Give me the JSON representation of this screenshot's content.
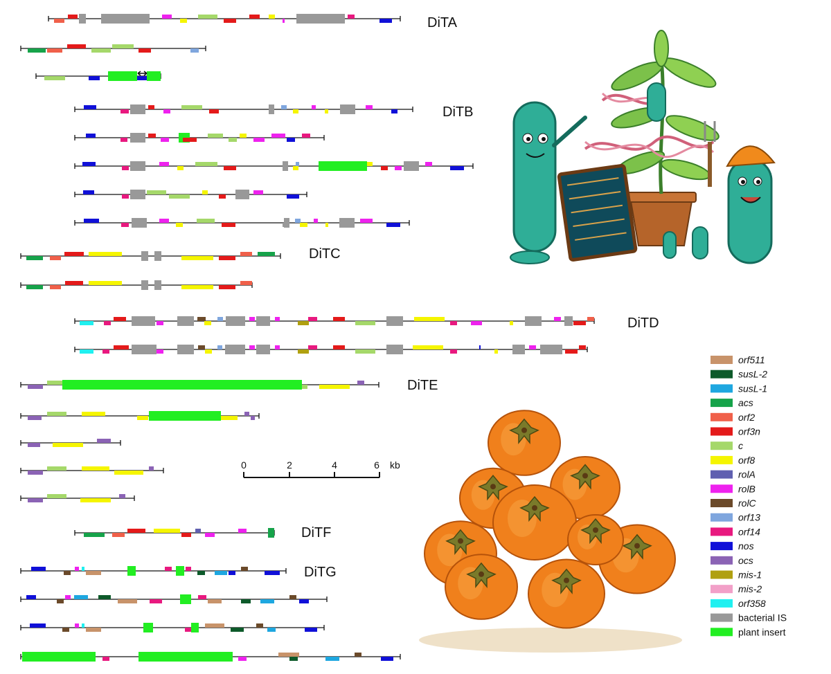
{
  "groups": [
    {
      "id": "DiTA",
      "label": "DiTA"
    },
    {
      "id": "DiTB",
      "label": "DiTB"
    },
    {
      "id": "DiTC",
      "label": "DiTC"
    },
    {
      "id": "DiTD",
      "label": "DiTD"
    },
    {
      "id": "DiTE",
      "label": "DiTE"
    },
    {
      "id": "DiTF",
      "label": "DiTF"
    },
    {
      "id": "DiTG",
      "label": "DiTG"
    }
  ],
  "scale": {
    "ticks": [
      "0",
      "2",
      "4",
      "6"
    ],
    "unit": "kb"
  },
  "legend": [
    {
      "key": "orf511",
      "label": "orf511",
      "color": "#c8936a",
      "italic": true
    },
    {
      "key": "susL2",
      "label": "susL-2",
      "color": "#0d5a2a",
      "italic": true
    },
    {
      "key": "susL1",
      "label": "susL-1",
      "color": "#1ea7e0",
      "italic": true
    },
    {
      "key": "acs",
      "label": "acs",
      "color": "#16a34a",
      "italic": true
    },
    {
      "key": "orf2",
      "label": "orf2",
      "color": "#f0604a",
      "italic": true
    },
    {
      "key": "orf3n",
      "label": "orf3n",
      "color": "#e41a1a",
      "italic": true
    },
    {
      "key": "c",
      "label": "c",
      "color": "#a5d86a",
      "italic": true
    },
    {
      "key": "orf8",
      "label": "orf8",
      "color": "#f5f500",
      "italic": true
    },
    {
      "key": "rolA",
      "label": "rolA",
      "color": "#6060b0",
      "italic": true
    },
    {
      "key": "rolB",
      "label": "rolB",
      "color": "#ee22ee",
      "italic": true
    },
    {
      "key": "rolC",
      "label": "rolC",
      "color": "#6b4a2a",
      "italic": true
    },
    {
      "key": "orf13",
      "label": "orf13",
      "color": "#7fa6de",
      "italic": true
    },
    {
      "key": "orf14",
      "label": "orf14",
      "color": "#e8197f",
      "italic": true
    },
    {
      "key": "nos",
      "label": "nos",
      "color": "#1010d8",
      "italic": true
    },
    {
      "key": "ocs",
      "label": "ocs",
      "color": "#8b63b5",
      "italic": true
    },
    {
      "key": "mis1",
      "label": "mis-1",
      "color": "#b0a010",
      "italic": true
    },
    {
      "key": "mis2",
      "label": "mis-2",
      "color": "#f2a0c8",
      "italic": true
    },
    {
      "key": "orf358",
      "label": "orf358",
      "color": "#20f0f0",
      "italic": true
    },
    {
      "key": "IS",
      "label": "bacterial IS",
      "color": "#999999",
      "italic": false
    },
    {
      "key": "plant",
      "label": "plant insert",
      "color": "#22ee22",
      "italic": false
    }
  ]
}
